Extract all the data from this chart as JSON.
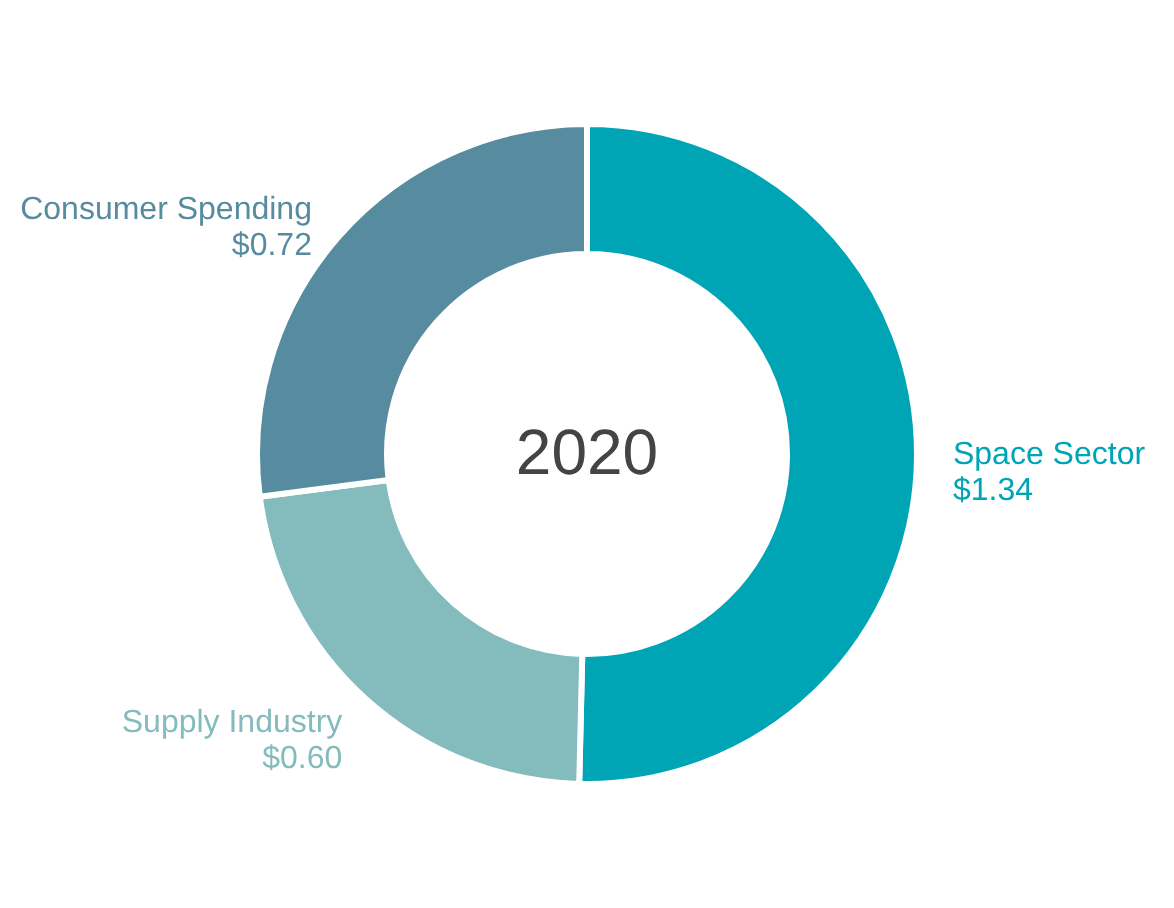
{
  "chart_data": {
    "type": "donut",
    "title": "2020",
    "categories": [
      "Space Sector",
      "Supply Industry",
      "Consumer Spending"
    ],
    "values": [
      1.34,
      0.6,
      0.72
    ],
    "value_labels": [
      "$1.34",
      "$0.60",
      "$0.72"
    ],
    "colors": [
      "#00a5b5",
      "#84bbbd",
      "#578b9f"
    ]
  }
}
